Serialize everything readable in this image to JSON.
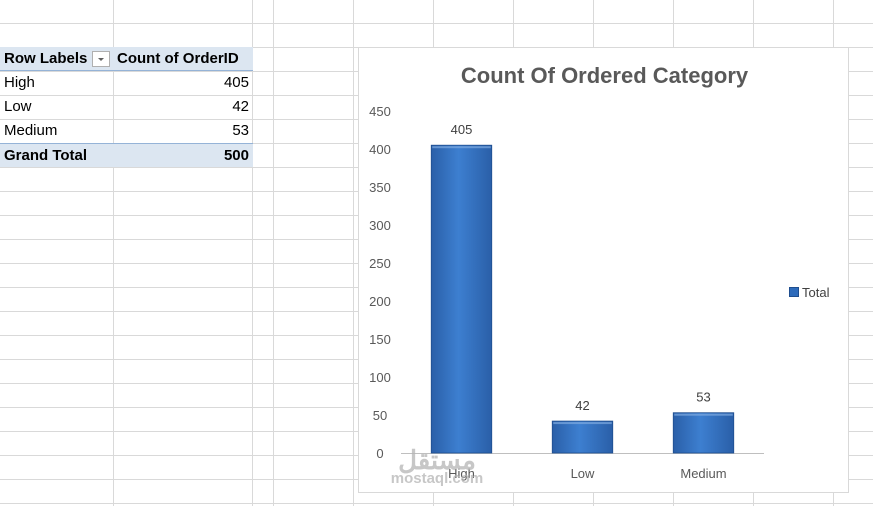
{
  "pivot": {
    "header_row_label": "Row Labels",
    "header_value_label": "Count of OrderID",
    "rows": [
      {
        "label": "High",
        "value": "405"
      },
      {
        "label": "Low",
        "value": "42"
      },
      {
        "label": "Medium",
        "value": "53"
      }
    ],
    "total": {
      "label": "Grand Total",
      "value": "500"
    }
  },
  "chart_data": {
    "type": "bar",
    "title": "Count Of Ordered Category",
    "categories": [
      "High",
      "Low",
      "Medium"
    ],
    "series": [
      {
        "name": "Total",
        "values": [
          405,
          42,
          53
        ]
      }
    ],
    "ylim": [
      0,
      450
    ],
    "yticks": [
      0,
      50,
      100,
      150,
      200,
      250,
      300,
      350,
      400,
      450
    ],
    "data_labels": true,
    "grid": false,
    "legend": "right",
    "bar_color": "#2e6bbb"
  },
  "watermark": {
    "arabic": "مستقل",
    "latin": "mostaql.com"
  }
}
